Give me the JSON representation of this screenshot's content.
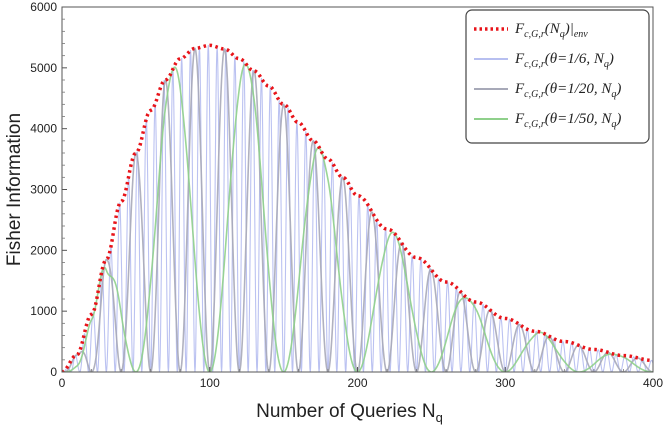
{
  "chart_data": {
    "type": "line",
    "xlabel": "Number of Queries N",
    "xlabel_sub": "q",
    "ylabel": "Fisher Information",
    "xlim": [
      0,
      400
    ],
    "ylim": [
      0,
      6000
    ],
    "x_ticks": [
      0,
      100,
      200,
      300,
      400
    ],
    "y_ticks": [
      0,
      1000,
      2000,
      3000,
      4000,
      5000,
      6000
    ],
    "grid": false,
    "legend_position": "top-right",
    "envelope_samples": {
      "x": [
        0,
        10,
        20,
        30,
        40,
        50,
        60,
        70,
        80,
        90,
        100,
        110,
        120,
        130,
        140,
        150,
        160,
        170,
        180,
        190,
        200,
        220,
        240,
        260,
        280,
        300,
        320,
        340,
        360,
        380,
        400
      ],
      "y": [
        0,
        280,
        950,
        1850,
        2800,
        3600,
        4300,
        4800,
        5150,
        5320,
        5370,
        5310,
        5150,
        4950,
        4700,
        4400,
        4100,
        3800,
        3500,
        3200,
        2900,
        2350,
        1880,
        1480,
        1150,
        880,
        670,
        500,
        370,
        270,
        190
      ]
    },
    "series": [
      {
        "name": "F_{c,G,r}(N_q)|env",
        "color": "#e8141a",
        "style": "dotted",
        "theta": null
      },
      {
        "name": "F_{c,G,r}(θ=1/6, N_q)",
        "color": "#b7bff0",
        "style": "solid",
        "theta": 0.16667
      },
      {
        "name": "F_{c,G,r}(θ=1/20, N_q)",
        "color": "#a7a9b8",
        "style": "solid",
        "theta": 0.05
      },
      {
        "name": "F_{c,G,r}(θ=1/50, N_q)",
        "color": "#8fd08b",
        "style": "solid",
        "theta": 0.02
      }
    ],
    "legend": {
      "entries": [
        {
          "main": "F",
          "sub": "c,G,r",
          "args": "(N",
          "args_sub": "q",
          "tail": ")|",
          "tail_sub": "env"
        },
        {
          "main": "F",
          "sub": "c,G,r",
          "args": "(θ=1/6, N",
          "args_sub": "q",
          "tail": ")",
          "tail_sub": ""
        },
        {
          "main": "F",
          "sub": "c,G,r",
          "args": "(θ=1/20, N",
          "args_sub": "q",
          "tail": ")",
          "tail_sub": ""
        },
        {
          "main": "F",
          "sub": "c,G,r",
          "args": "(θ=1/50, N",
          "args_sub": "q",
          "tail": ")",
          "tail_sub": ""
        }
      ]
    }
  }
}
